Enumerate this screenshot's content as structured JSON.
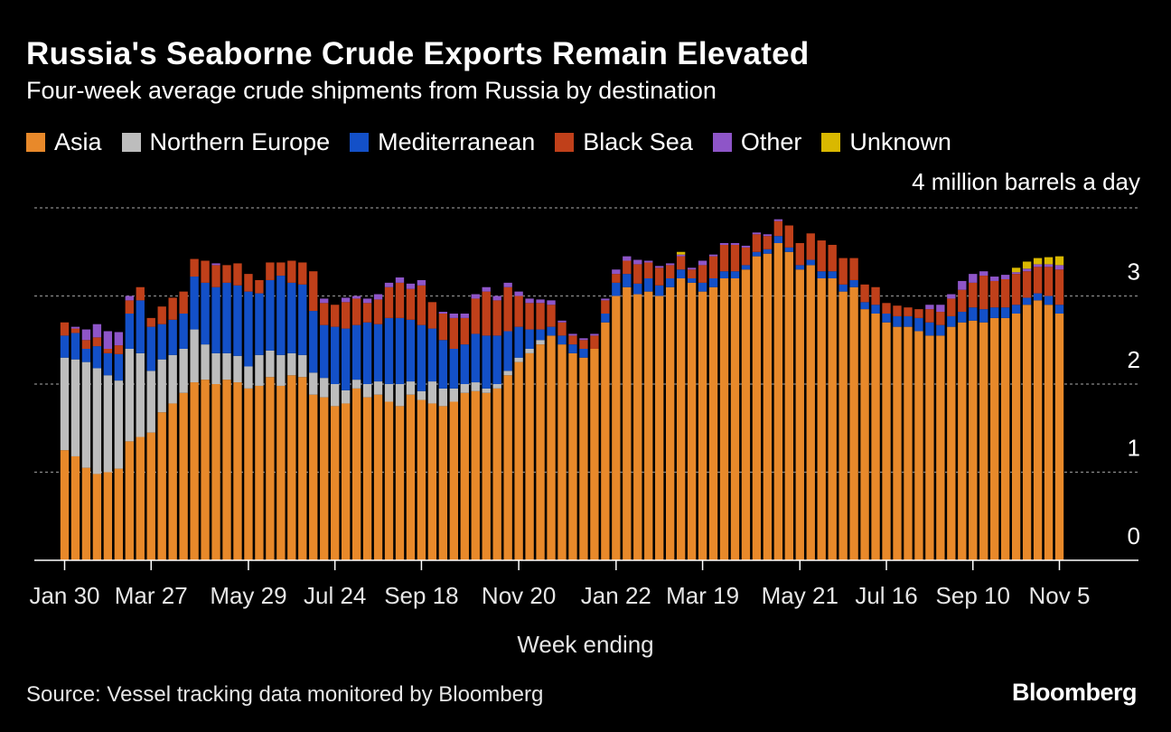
{
  "header": {
    "title": "Russia's Seaborne Crude Exports Remain Elevated",
    "subtitle": "Four-week average crude shipments from Russia by destination"
  },
  "legend": [
    {
      "label": "Asia",
      "color": "#E8892A"
    },
    {
      "label": "Northern Europe",
      "color": "#BDBDBD"
    },
    {
      "label": "Mediterranean",
      "color": "#1350C8"
    },
    {
      "label": "Black Sea",
      "color": "#C0401A"
    },
    {
      "label": "Other",
      "color": "#8E55C8"
    },
    {
      "label": "Unknown",
      "color": "#D9B800"
    }
  ],
  "footer": {
    "source": "Source: Vessel tracking data monitored by Bloomberg",
    "brand": "Bloomberg"
  },
  "chart_data": {
    "type": "bar",
    "stacked": true,
    "title": "Russia's Seaborne Crude Exports Remain Elevated",
    "subtitle": "Four-week average crude shipments from Russia by destination",
    "xlabel": "Week ending",
    "ylabel": "4 million barrels a day",
    "ylim": [
      0,
      4
    ],
    "yticks": [
      0,
      1,
      2,
      3
    ],
    "grid": true,
    "legend_position": "top",
    "xtick_labels": [
      {
        "label": "Jan 30",
        "index": 0
      },
      {
        "label": "Mar 27",
        "index": 8
      },
      {
        "label": "May 29",
        "index": 17
      },
      {
        "label": "Jul 24",
        "index": 25
      },
      {
        "label": "Sep 18",
        "index": 33
      },
      {
        "label": "Nov 20",
        "index": 42
      },
      {
        "label": "Jan 22",
        "index": 51
      },
      {
        "label": "Mar 19",
        "index": 59
      },
      {
        "label": "May 21",
        "index": 68
      },
      {
        "label": "Jul 16",
        "index": 76
      },
      {
        "label": "Sep 10",
        "index": 84
      },
      {
        "label": "Nov 5",
        "index": 92
      }
    ],
    "series": [
      {
        "name": "Asia",
        "color": "#E8892A",
        "values": [
          1.25,
          1.18,
          1.05,
          0.98,
          1.0,
          1.04,
          1.35,
          1.4,
          1.45,
          1.68,
          1.78,
          1.9,
          2.02,
          2.05,
          2.0,
          2.05,
          2.02,
          1.95,
          1.98,
          2.08,
          1.98,
          2.1,
          2.08,
          1.88,
          1.85,
          1.75,
          1.78,
          1.95,
          1.85,
          1.88,
          1.8,
          1.75,
          1.88,
          1.82,
          1.78,
          1.75,
          1.8,
          1.9,
          1.92,
          1.9,
          1.95,
          2.1,
          2.25,
          2.35,
          2.45,
          2.55,
          2.45,
          2.35,
          2.3,
          2.4,
          2.7,
          3.0,
          3.1,
          3.02,
          3.05,
          3.0,
          3.1,
          3.2,
          3.15,
          3.05,
          3.1,
          3.2,
          3.2,
          3.3,
          3.45,
          3.48,
          3.6,
          3.5,
          3.3,
          3.35,
          3.2,
          3.2,
          3.05,
          3.1,
          2.85,
          2.8,
          2.7,
          2.65,
          2.65,
          2.6,
          2.55,
          2.55,
          2.65,
          2.7,
          2.72,
          2.7,
          2.75,
          2.75,
          2.8,
          2.9,
          2.95,
          2.9,
          2.8
        ]
      },
      {
        "name": "Northern Europe",
        "color": "#BDBDBD",
        "values": [
          1.05,
          1.1,
          1.2,
          1.2,
          1.1,
          1.0,
          1.05,
          0.95,
          0.7,
          0.6,
          0.55,
          0.5,
          0.6,
          0.4,
          0.35,
          0.3,
          0.3,
          0.25,
          0.35,
          0.3,
          0.35,
          0.25,
          0.25,
          0.25,
          0.22,
          0.25,
          0.15,
          0.1,
          0.15,
          0.15,
          0.2,
          0.25,
          0.15,
          0.1,
          0.25,
          0.2,
          0.15,
          0.1,
          0.1,
          0.05,
          0.05,
          0.05,
          0.05,
          0.05,
          0.05,
          0.0,
          0.0,
          0.0,
          0.0,
          0.0,
          0.0,
          0.0,
          0.0,
          0.0,
          0.0,
          0.0,
          0.0,
          0.0,
          0.0,
          0.0,
          0.0,
          0.0,
          0.0,
          0.0,
          0.0,
          0.0,
          0.0,
          0.0,
          0.0,
          0.0,
          0.0,
          0.0,
          0.0,
          0.0,
          0.0,
          0.0,
          0.0,
          0.0,
          0.0,
          0.0,
          0.0,
          0.0,
          0.0,
          0.0,
          0.0,
          0.0,
          0.0,
          0.0,
          0.0,
          0.0,
          0.0,
          0.0,
          0.0
        ]
      },
      {
        "name": "Mediterranean",
        "color": "#1350C8",
        "values": [
          0.25,
          0.3,
          0.15,
          0.25,
          0.25,
          0.3,
          0.4,
          0.6,
          0.5,
          0.4,
          0.4,
          0.4,
          0.6,
          0.7,
          0.75,
          0.8,
          0.8,
          0.85,
          0.7,
          0.8,
          0.9,
          0.8,
          0.8,
          0.7,
          0.6,
          0.65,
          0.7,
          0.62,
          0.7,
          0.65,
          0.75,
          0.75,
          0.7,
          0.75,
          0.6,
          0.55,
          0.45,
          0.45,
          0.55,
          0.6,
          0.55,
          0.45,
          0.35,
          0.22,
          0.12,
          0.1,
          0.1,
          0.1,
          0.1,
          0.0,
          0.1,
          0.15,
          0.15,
          0.12,
          0.15,
          0.12,
          0.1,
          0.1,
          0.05,
          0.1,
          0.1,
          0.08,
          0.08,
          0.05,
          0.05,
          0.05,
          0.08,
          0.05,
          0.05,
          0.06,
          0.08,
          0.08,
          0.08,
          0.08,
          0.08,
          0.1,
          0.1,
          0.12,
          0.12,
          0.15,
          0.15,
          0.12,
          0.12,
          0.12,
          0.15,
          0.15,
          0.12,
          0.12,
          0.1,
          0.08,
          0.08,
          0.1,
          0.1
        ]
      },
      {
        "name": "Black Sea",
        "color": "#C0401A",
        "values": [
          0.15,
          0.05,
          0.1,
          0.1,
          0.05,
          0.1,
          0.15,
          0.15,
          0.1,
          0.2,
          0.25,
          0.25,
          0.2,
          0.25,
          0.25,
          0.2,
          0.25,
          0.2,
          0.15,
          0.2,
          0.15,
          0.25,
          0.25,
          0.45,
          0.25,
          0.25,
          0.3,
          0.3,
          0.22,
          0.28,
          0.35,
          0.4,
          0.35,
          0.45,
          0.3,
          0.3,
          0.35,
          0.3,
          0.4,
          0.5,
          0.4,
          0.5,
          0.35,
          0.3,
          0.3,
          0.25,
          0.15,
          0.1,
          0.1,
          0.15,
          0.15,
          0.1,
          0.15,
          0.22,
          0.18,
          0.2,
          0.15,
          0.15,
          0.1,
          0.2,
          0.25,
          0.3,
          0.3,
          0.2,
          0.2,
          0.15,
          0.17,
          0.25,
          0.25,
          0.3,
          0.35,
          0.3,
          0.3,
          0.25,
          0.2,
          0.2,
          0.12,
          0.12,
          0.1,
          0.1,
          0.15,
          0.15,
          0.2,
          0.25,
          0.28,
          0.38,
          0.3,
          0.32,
          0.35,
          0.3,
          0.3,
          0.33,
          0.4
        ]
      },
      {
        "name": "Other",
        "color": "#8E55C8",
        "values": [
          0.0,
          0.02,
          0.12,
          0.15,
          0.2,
          0.15,
          0.05,
          0.0,
          0.0,
          0.0,
          0.0,
          0.0,
          0.0,
          0.0,
          0.02,
          0.0,
          0.0,
          0.0,
          0.0,
          0.0,
          0.0,
          0.0,
          0.0,
          0.0,
          0.05,
          0.0,
          0.05,
          0.03,
          0.05,
          0.06,
          0.05,
          0.06,
          0.06,
          0.06,
          0.0,
          0.02,
          0.05,
          0.05,
          0.05,
          0.05,
          0.05,
          0.05,
          0.05,
          0.05,
          0.04,
          0.05,
          0.02,
          0.02,
          0.02,
          0.02,
          0.02,
          0.05,
          0.05,
          0.05,
          0.02,
          0.02,
          0.02,
          0.02,
          0.02,
          0.05,
          0.02,
          0.02,
          0.02,
          0.02,
          0.02,
          0.02,
          0.02,
          0.0,
          0.0,
          0.0,
          0.0,
          0.0,
          0.0,
          0.0,
          0.0,
          0.0,
          0.0,
          0.0,
          0.0,
          0.0,
          0.05,
          0.08,
          0.05,
          0.1,
          0.1,
          0.05,
          0.05,
          0.05,
          0.02,
          0.03,
          0.03,
          0.03,
          0.05
        ]
      },
      {
        "name": "Unknown",
        "color": "#D9B800",
        "values": [
          0.0,
          0.0,
          0.0,
          0.0,
          0.0,
          0.0,
          0.0,
          0.0,
          0.0,
          0.0,
          0.0,
          0.0,
          0.0,
          0.0,
          0.0,
          0.0,
          0.0,
          0.0,
          0.0,
          0.0,
          0.0,
          0.0,
          0.0,
          0.0,
          0.0,
          0.0,
          0.0,
          0.0,
          0.0,
          0.0,
          0.0,
          0.0,
          0.0,
          0.0,
          0.0,
          0.0,
          0.0,
          0.0,
          0.0,
          0.0,
          0.0,
          0.0,
          0.0,
          0.0,
          0.0,
          0.0,
          0.0,
          0.0,
          0.0,
          0.0,
          0.0,
          0.0,
          0.0,
          0.0,
          0.0,
          0.0,
          0.0,
          0.03,
          0.0,
          0.0,
          0.0,
          0.0,
          0.0,
          0.0,
          0.0,
          0.0,
          0.0,
          0.0,
          0.0,
          0.0,
          0.0,
          0.0,
          0.0,
          0.0,
          0.0,
          0.0,
          0.0,
          0.0,
          0.0,
          0.0,
          0.0,
          0.0,
          0.0,
          0.0,
          0.0,
          0.0,
          0.0,
          0.0,
          0.05,
          0.08,
          0.07,
          0.08,
          0.1
        ]
      }
    ]
  }
}
